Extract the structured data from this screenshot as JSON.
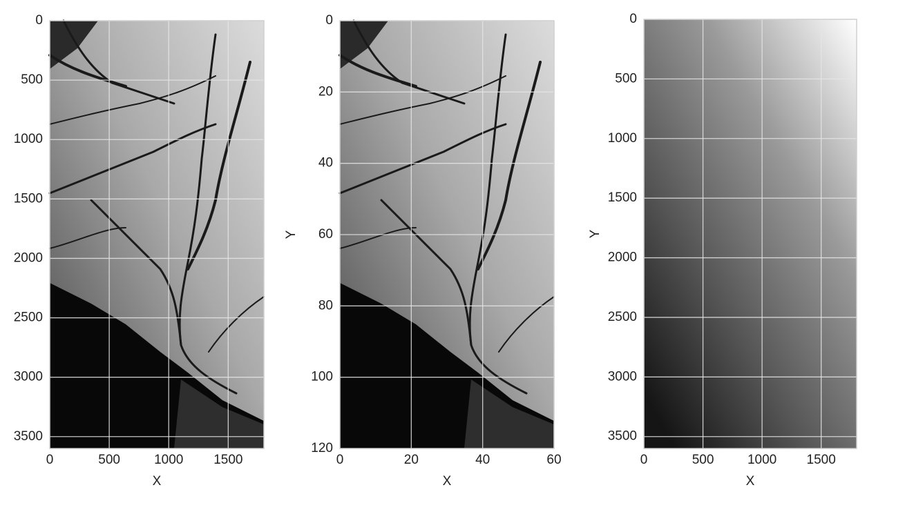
{
  "chart_data": [
    {
      "type": "image",
      "image": "terrain",
      "xlabel": "X",
      "xlim": [
        0,
        1800
      ],
      "ylim": [
        0,
        3600
      ],
      "y_inverted": true,
      "xticks": [
        0,
        500,
        1000,
        1500
      ],
      "yticks": [
        0,
        500,
        1000,
        1500,
        2000,
        2500,
        3000,
        3500
      ],
      "grid": true
    },
    {
      "type": "image",
      "image": "terrain",
      "xlabel": "X",
      "ylabel": "Y",
      "xlim": [
        0,
        60
      ],
      "ylim": [
        0,
        120
      ],
      "y_inverted": true,
      "xticks": [
        0,
        20,
        40,
        60
      ],
      "yticks": [
        0,
        20,
        40,
        60,
        80,
        100,
        120
      ],
      "grid": true
    },
    {
      "type": "image",
      "image": "gradient",
      "xlabel": "X",
      "ylabel": "Y",
      "xlim": [
        0,
        1800
      ],
      "ylim": [
        0,
        3600
      ],
      "y_inverted": true,
      "xticks": [
        0,
        500,
        1000,
        1500
      ],
      "yticks": [
        0,
        500,
        1000,
        1500,
        2000,
        2500,
        3000,
        3500
      ],
      "grid": true
    }
  ]
}
